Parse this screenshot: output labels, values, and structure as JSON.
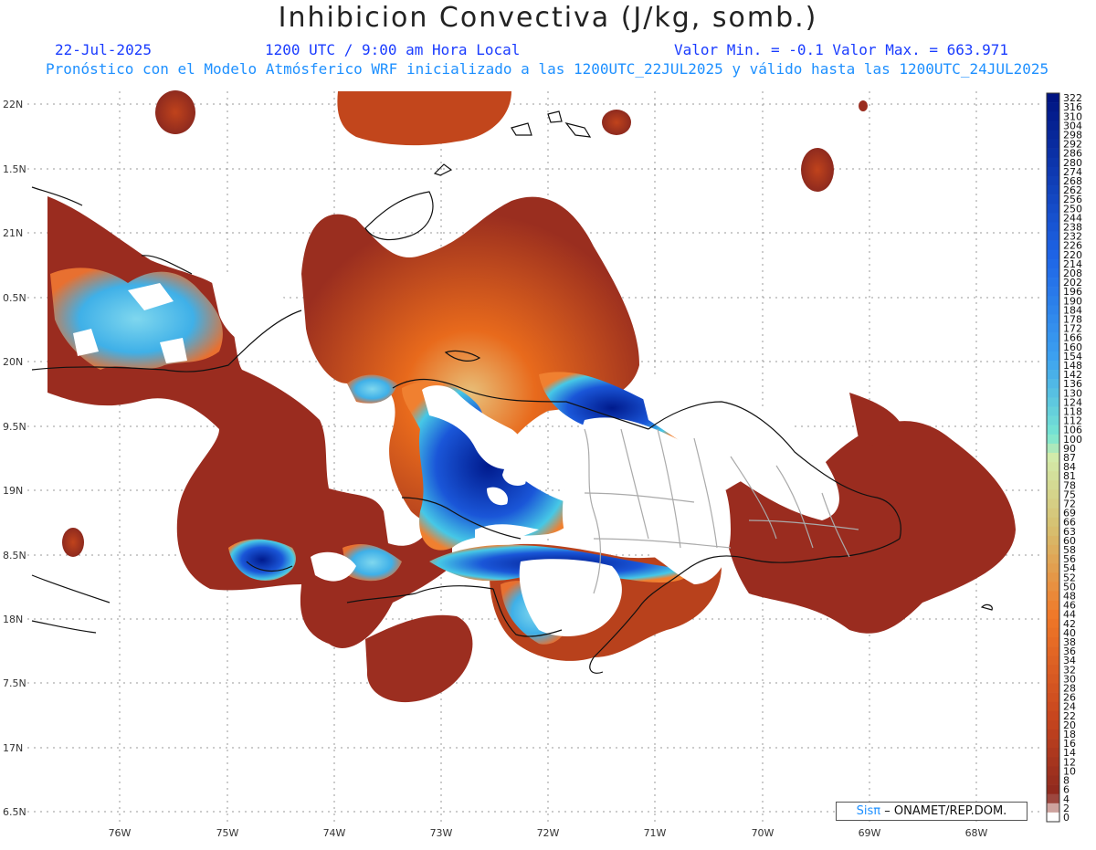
{
  "title": "Inhibicion Convectiva (J/kg, somb.)",
  "header": {
    "date": "22-Jul-2025",
    "time": "1200 UTC / 9:00 am Hora Local",
    "minmax": "Valor Min. = -0.1  Valor Max. = 663.971",
    "description": "Pronóstico con el Modelo Atmósferico WRF inicializado a las 1200UTC_22JUL2025 y válido hasta las  1200UTC_24JUL2025"
  },
  "axes": {
    "lat_labels": [
      "22N",
      "1.5N",
      "21N",
      "0.5N",
      "20N",
      "9.5N",
      "19N",
      "8.5N",
      "18N",
      "7.5N",
      "17N",
      "6.5N"
    ],
    "lon_labels": [
      "76W",
      "75W",
      "74W",
      "73W",
      "72W",
      "71W",
      "70W",
      "69W",
      "68W"
    ]
  },
  "colorbar": {
    "labels": [
      "322",
      "316",
      "310",
      "304",
      "298",
      "292",
      "286",
      "280",
      "274",
      "268",
      "262",
      "256",
      "250",
      "244",
      "238",
      "232",
      "226",
      "220",
      "214",
      "208",
      "202",
      "196",
      "190",
      "184",
      "178",
      "172",
      "166",
      "160",
      "154",
      "148",
      "142",
      "136",
      "130",
      "124",
      "118",
      "112",
      "106",
      "100",
      "90",
      "87",
      "84",
      "81",
      "78",
      "75",
      "72",
      "69",
      "66",
      "63",
      "60",
      "58",
      "56",
      "54",
      "52",
      "50",
      "48",
      "46",
      "44",
      "42",
      "40",
      "38",
      "36",
      "34",
      "32",
      "30",
      "28",
      "26",
      "24",
      "22",
      "20",
      "18",
      "16",
      "14",
      "12",
      "10",
      "8",
      "6",
      "4",
      "2",
      "0"
    ]
  },
  "credit": {
    "sis": "Sisπ",
    "org": "– ONAMET/REP.DOM."
  },
  "colors": {
    "low": "#9a2a1f",
    "mid": "#e0541a",
    "pale": "#d9e9a8",
    "cyan": "#3cc8e8",
    "blue": "#1b4fd6",
    "deep": "#001a8c"
  }
}
